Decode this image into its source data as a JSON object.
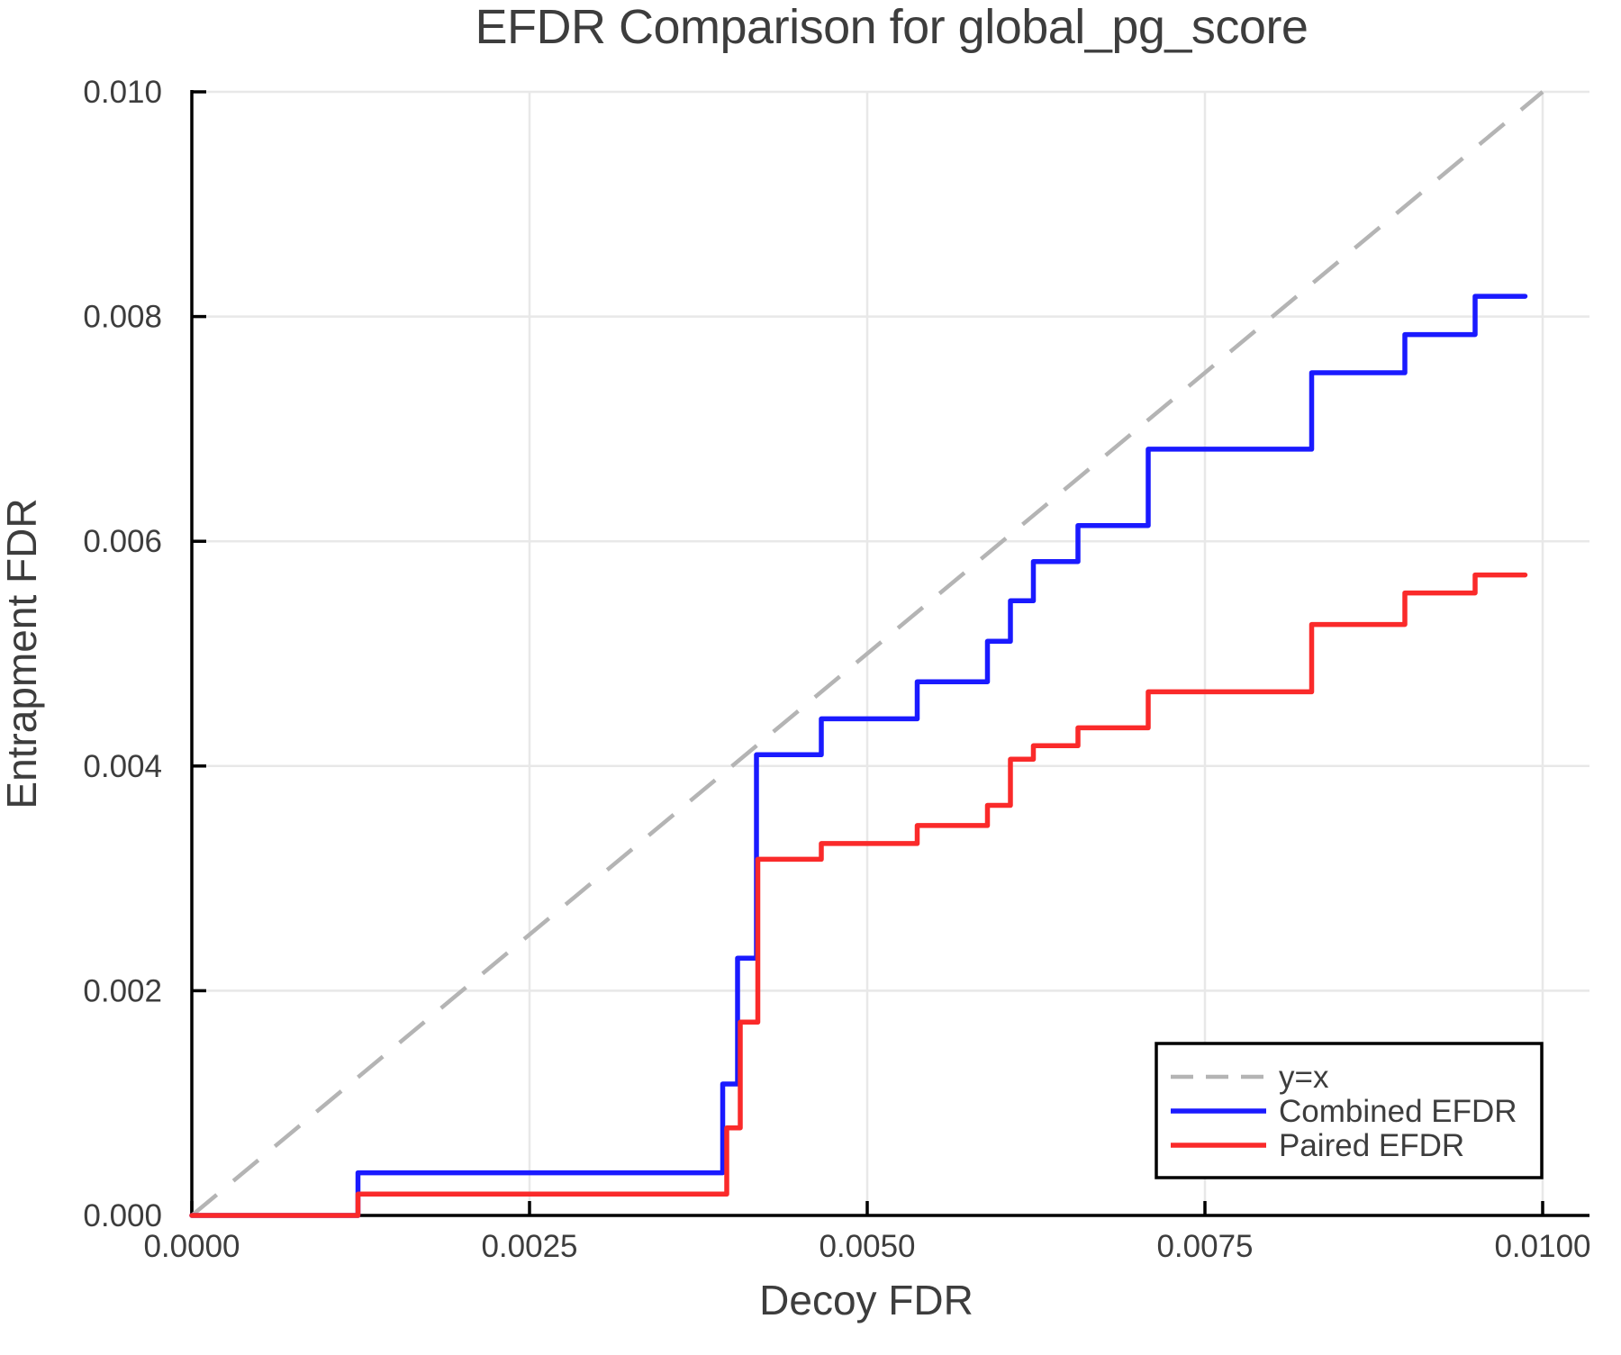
{
  "figure": {
    "title": "EFDR Comparison for global_pg_score",
    "xlabel": "Decoy FDR",
    "ylabel": "Entrapment FDR"
  },
  "legend": {
    "items": [
      {
        "label": "y=x",
        "color": "#b4b4b4",
        "style": "dashed"
      },
      {
        "label": "Combined EFDR",
        "color": "#1a1aff",
        "style": "solid"
      },
      {
        "label": "Paired EFDR",
        "color": "#fa2a2a",
        "style": "solid"
      }
    ]
  },
  "colors": {
    "identity_line": "#b4b4b4",
    "combined_efdr": "#1a1aff",
    "paired_efdr": "#fa2a2a",
    "gridline": "#e8e8e8",
    "spine": "#000000",
    "text": "#3d3d3d",
    "background": "#ffffff"
  },
  "chart_data": {
    "type": "line",
    "title": "EFDR Comparison for global_pg_score",
    "xlabel": "Decoy FDR",
    "ylabel": "Entrapment FDR",
    "xlim": [
      0,
      0.01
    ],
    "ylim": [
      0,
      0.01
    ],
    "grid": true,
    "legend_position": "lower right",
    "x_ticks": {
      "values": [
        0,
        0.0025,
        0.005,
        0.0075,
        0.01
      ],
      "labels": [
        "0.0000",
        "0.0025",
        "0.0050",
        "0.0075",
        "0.0100"
      ]
    },
    "y_ticks": {
      "values": [
        0,
        0.002,
        0.004,
        0.006,
        0.008,
        0.01
      ],
      "labels": [
        "0.000",
        "0.002",
        "0.004",
        "0.006",
        "0.008",
        "0.010"
      ]
    },
    "series": [
      {
        "name": "y=x",
        "style": "dashed",
        "color": "#b4b4b4",
        "points": [
          [
            0,
            0
          ],
          [
            0.01,
            0.01
          ]
        ]
      },
      {
        "name": "Combined EFDR",
        "style": "solid",
        "color": "#1a1aff",
        "points": [
          [
            0,
            0
          ],
          [
            0.00123,
            0
          ],
          [
            0.00123,
            0.00038
          ],
          [
            0.00393,
            0.00038
          ],
          [
            0.00393,
            0.00117
          ],
          [
            0.00404,
            0.00117
          ],
          [
            0.00404,
            0.00229
          ],
          [
            0.00418,
            0.00229
          ],
          [
            0.00418,
            0.0041
          ],
          [
            0.00466,
            0.0041
          ],
          [
            0.00466,
            0.00442
          ],
          [
            0.00537,
            0.00442
          ],
          [
            0.00537,
            0.00475
          ],
          [
            0.00589,
            0.00475
          ],
          [
            0.00589,
            0.00511
          ],
          [
            0.00606,
            0.00511
          ],
          [
            0.00606,
            0.00547
          ],
          [
            0.00623,
            0.00547
          ],
          [
            0.00623,
            0.00582
          ],
          [
            0.00656,
            0.00582
          ],
          [
            0.00656,
            0.00614
          ],
          [
            0.00708,
            0.00614
          ],
          [
            0.00708,
            0.00682
          ],
          [
            0.00829,
            0.00682
          ],
          [
            0.00829,
            0.0075
          ],
          [
            0.00898,
            0.0075
          ],
          [
            0.00898,
            0.00784
          ],
          [
            0.0095,
            0.00784
          ],
          [
            0.0095,
            0.00818
          ],
          [
            0.00987,
            0.00818
          ]
        ]
      },
      {
        "name": "Paired EFDR",
        "style": "solid",
        "color": "#fa2a2a",
        "points": [
          [
            0,
            0
          ],
          [
            0.00123,
            0
          ],
          [
            0.00123,
            0.00019
          ],
          [
            0.00396,
            0.00019
          ],
          [
            0.00396,
            0.00078
          ],
          [
            0.00406,
            0.00078
          ],
          [
            0.00406,
            0.00172
          ],
          [
            0.00419,
            0.00172
          ],
          [
            0.00419,
            0.00317
          ],
          [
            0.00466,
            0.00317
          ],
          [
            0.00466,
            0.00331
          ],
          [
            0.00537,
            0.00331
          ],
          [
            0.00537,
            0.00347
          ],
          [
            0.00589,
            0.00347
          ],
          [
            0.00589,
            0.00365
          ],
          [
            0.00606,
            0.00365
          ],
          [
            0.00606,
            0.00406
          ],
          [
            0.00623,
            0.00406
          ],
          [
            0.00623,
            0.00418
          ],
          [
            0.00656,
            0.00418
          ],
          [
            0.00656,
            0.00434
          ],
          [
            0.00708,
            0.00434
          ],
          [
            0.00708,
            0.00466
          ],
          [
            0.00829,
            0.00466
          ],
          [
            0.00829,
            0.00526
          ],
          [
            0.00898,
            0.00526
          ],
          [
            0.00898,
            0.00554
          ],
          [
            0.0095,
            0.00554
          ],
          [
            0.0095,
            0.0057
          ],
          [
            0.00987,
            0.0057
          ]
        ]
      }
    ]
  }
}
